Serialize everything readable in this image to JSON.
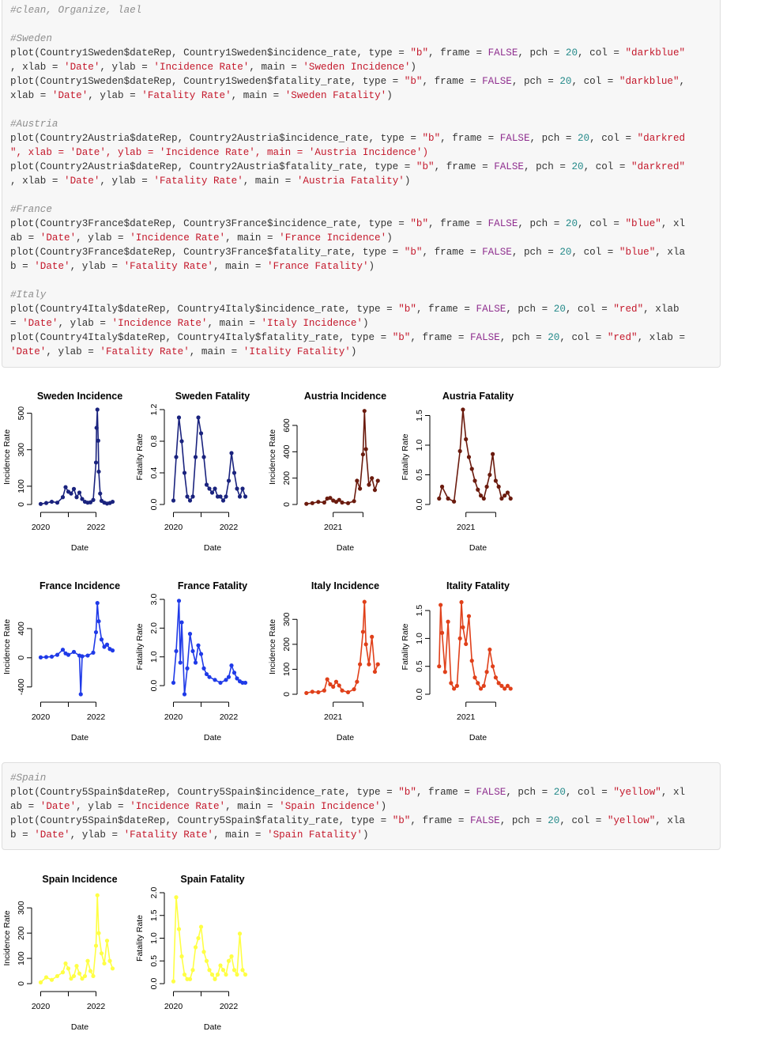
{
  "code_block_1": {
    "lines": [
      {
        "type": "comment",
        "text": "#clean, Organize, lael"
      },
      {
        "type": "blank",
        "text": ""
      },
      {
        "type": "comment",
        "text": "#Sweden"
      },
      {
        "type": "code",
        "text": "plot(Country1Sweden$dateRep, Country1Sweden$incidence_rate, type = \"b\", frame = FALSE, pch = 20, col = \"darkblue\""
      },
      {
        "type": "code",
        "text": ", xlab = 'Date', ylab = 'Incidence Rate', main = 'Sweden Incidence')"
      },
      {
        "type": "code",
        "text": "plot(Country1Sweden$dateRep, Country1Sweden$fatality_rate, type = \"b\", frame = FALSE, pch = 20, col = \"darkblue\","
      },
      {
        "type": "code",
        "text": "xlab = 'Date', ylab = 'Fatality Rate', main = 'Sweden Fatality')"
      },
      {
        "type": "blank",
        "text": ""
      },
      {
        "type": "comment",
        "text": "#Austria"
      },
      {
        "type": "code",
        "text": "plot(Country2Austria$dateRep, Country2Austria$incidence_rate, type = \"b\", frame = FALSE, pch = 20, col = \"darkred"
      },
      {
        "type": "code",
        "text": "\", xlab = 'Date', ylab = 'Incidence Rate', main = 'Austria Incidence')"
      },
      {
        "type": "code",
        "text": "plot(Country2Austria$dateRep, Country2Austria$fatality_rate, type = \"b\", frame = FALSE, pch = 20, col = \"darkred\""
      },
      {
        "type": "code",
        "text": ", xlab = 'Date', ylab = 'Fatality Rate', main = 'Austria Fatality')"
      },
      {
        "type": "blank",
        "text": ""
      },
      {
        "type": "comment",
        "text": "#France"
      },
      {
        "type": "code",
        "text": "plot(Country3France$dateRep, Country3France$incidence_rate, type = \"b\", frame = FALSE, pch = 20, col = \"blue\", xl"
      },
      {
        "type": "code",
        "text": "ab = 'Date', ylab = 'Incidence Rate', main = 'France Incidence')"
      },
      {
        "type": "code",
        "text": "plot(Country3France$dateRep, Country3France$fatality_rate, type = \"b\", frame = FALSE, pch = 20, col = \"blue\", xla"
      },
      {
        "type": "code",
        "text": "b = 'Date', ylab = 'Fatality Rate', main = 'France Fatality')"
      },
      {
        "type": "blank",
        "text": ""
      },
      {
        "type": "comment",
        "text": "#Italy"
      },
      {
        "type": "code",
        "text": "plot(Country4Italy$dateRep, Country4Italy$incidence_rate, type = \"b\", frame = FALSE, pch = 20, col = \"red\", xlab"
      },
      {
        "type": "code",
        "text": "= 'Date', ylab = 'Incidence Rate', main = 'Italy Incidence')"
      },
      {
        "type": "code",
        "text": "plot(Country4Italy$dateRep, Country4Italy$fatality_rate, type = \"b\", frame = FALSE, pch = 20, col = \"red\", xlab ="
      },
      {
        "type": "code",
        "text": "'Date', ylab = 'Fatality Rate', main = 'Itality Fatality')"
      }
    ]
  },
  "code_block_2": {
    "lines": [
      {
        "type": "comment",
        "text": "#Spain"
      },
      {
        "type": "code",
        "text": "plot(Country5Spain$dateRep, Country5Spain$incidence_rate, type = \"b\", frame = FALSE, pch = 20, col = \"yellow\", xl"
      },
      {
        "type": "code",
        "text": "ab = 'Date', ylab = 'Incidence Rate', main = 'Spain Incidence')"
      },
      {
        "type": "code",
        "text": "plot(Country5Spain$dateRep, Country5Spain$fatality_rate, type = \"b\", frame = FALSE, pch = 20, col = \"yellow\", xla"
      },
      {
        "type": "code",
        "text": "b = 'Date', ylab = 'Fatality Rate', main = 'Spain Fatality')"
      }
    ]
  },
  "chart_data": [
    {
      "id": "sweden-incidence",
      "type": "line",
      "title": "Sweden Incidence",
      "xlabel": "Date",
      "ylabel": "Incidence Rate",
      "color": "#1a237e",
      "xlim": [
        2019.9,
        2022.7
      ],
      "ylim": [
        0,
        520
      ],
      "xticks": [
        2020,
        2021,
        2022
      ],
      "xtick_labels": [
        "2020",
        "",
        "2022"
      ],
      "yticks": [
        0,
        100,
        300,
        500
      ],
      "ytick_labels": [
        "0",
        "100",
        "300",
        "500"
      ],
      "x": [
        2020.0,
        2020.2,
        2020.4,
        2020.6,
        2020.8,
        2020.9,
        2021.0,
        2021.1,
        2021.2,
        2021.3,
        2021.4,
        2021.5,
        2021.6,
        2021.7,
        2021.8,
        2021.9,
        2022.0,
        2022.02,
        2022.05,
        2022.08,
        2022.1,
        2022.15,
        2022.2,
        2022.3,
        2022.4,
        2022.5,
        2022.6
      ],
      "y": [
        3,
        8,
        15,
        10,
        40,
        95,
        70,
        60,
        85,
        40,
        65,
        30,
        15,
        10,
        12,
        25,
        230,
        420,
        520,
        350,
        180,
        60,
        20,
        10,
        5,
        8,
        15
      ]
    },
    {
      "id": "sweden-fatality",
      "type": "line",
      "title": "Sweden Fatality",
      "xlabel": "Date",
      "ylabel": "Fatality Rate",
      "color": "#1a237e",
      "xlim": [
        2019.9,
        2022.7
      ],
      "ylim": [
        0,
        1.2
      ],
      "xticks": [
        2020,
        2021,
        2022
      ],
      "xtick_labels": [
        "2020",
        "",
        "2022"
      ],
      "yticks": [
        0,
        0.4,
        0.8,
        1.2
      ],
      "ytick_labels": [
        "0.0",
        "0.4",
        "0.8",
        "1.2"
      ],
      "x": [
        2020.0,
        2020.1,
        2020.2,
        2020.3,
        2020.4,
        2020.5,
        2020.6,
        2020.7,
        2020.8,
        2020.9,
        2021.0,
        2021.1,
        2021.2,
        2021.3,
        2021.4,
        2021.5,
        2021.6,
        2021.7,
        2021.8,
        2021.9,
        2022.0,
        2022.1,
        2022.2,
        2022.3,
        2022.4,
        2022.5,
        2022.6
      ],
      "y": [
        0.05,
        0.6,
        1.1,
        0.8,
        0.4,
        0.1,
        0.05,
        0.1,
        0.6,
        1.1,
        0.9,
        0.6,
        0.25,
        0.2,
        0.15,
        0.2,
        0.1,
        0.1,
        0.05,
        0.1,
        0.3,
        0.65,
        0.4,
        0.2,
        0.1,
        0.2,
        0.1
      ]
    },
    {
      "id": "austria-incidence",
      "type": "line",
      "title": "Austria Incidence",
      "xlabel": "Date",
      "ylabel": "Incidence Rate",
      "color": "#6b1b0e",
      "xlim": [
        2020.0,
        2022.6
      ],
      "ylim": [
        0,
        720
      ],
      "xticks": [
        2021,
        2022
      ],
      "xtick_labels": [
        "2021",
        ""
      ],
      "yticks": [
        0,
        200,
        400,
        600
      ],
      "ytick_labels": [
        "0",
        "200",
        "400",
        "600"
      ],
      "x": [
        2020.1,
        2020.3,
        2020.5,
        2020.7,
        2020.8,
        2020.9,
        2021.0,
        2021.1,
        2021.2,
        2021.3,
        2021.5,
        2021.7,
        2021.8,
        2021.9,
        2022.0,
        2022.05,
        2022.1,
        2022.2,
        2022.3,
        2022.4,
        2022.5
      ],
      "y": [
        5,
        10,
        20,
        15,
        45,
        50,
        30,
        20,
        35,
        15,
        10,
        25,
        180,
        120,
        380,
        710,
        420,
        150,
        200,
        110,
        180
      ]
    },
    {
      "id": "austria-fatality",
      "type": "line",
      "title": "Austria Fatality",
      "xlabel": "Date",
      "ylabel": "Fatality Rate",
      "color": "#6b1b0e",
      "xlim": [
        2020.0,
        2022.6
      ],
      "ylim": [
        0,
        1.6
      ],
      "xticks": [
        2021,
        2022
      ],
      "xtick_labels": [
        "2021",
        ""
      ],
      "yticks": [
        0,
        0.5,
        1.0,
        1.5
      ],
      "ytick_labels": [
        "0.0",
        "0.5",
        "1.0",
        "1.5"
      ],
      "x": [
        2020.1,
        2020.2,
        2020.4,
        2020.6,
        2020.8,
        2020.9,
        2021.0,
        2021.1,
        2021.2,
        2021.3,
        2021.4,
        2021.5,
        2021.6,
        2021.7,
        2021.8,
        2021.9,
        2022.0,
        2022.1,
        2022.2,
        2022.3,
        2022.4,
        2022.5
      ],
      "y": [
        0.1,
        0.3,
        0.1,
        0.05,
        0.9,
        1.6,
        1.1,
        0.8,
        0.6,
        0.4,
        0.25,
        0.15,
        0.1,
        0.3,
        0.5,
        0.85,
        0.4,
        0.3,
        0.1,
        0.15,
        0.2,
        0.1
      ]
    },
    {
      "id": "france-incidence",
      "type": "line",
      "title": "France Incidence",
      "xlabel": "Date",
      "ylabel": "Incidence Rate",
      "color": "#1f3ae8",
      "xlim": [
        2019.9,
        2022.7
      ],
      "ylim": [
        -500,
        800
      ],
      "xticks": [
        2020,
        2021,
        2022
      ],
      "xtick_labels": [
        "2020",
        "",
        "2022"
      ],
      "yticks": [
        -400,
        0,
        400
      ],
      "ytick_labels": [
        "-400",
        "0",
        "400"
      ],
      "x": [
        2020.0,
        2020.2,
        2020.4,
        2020.6,
        2020.8,
        2020.9,
        2021.0,
        2021.2,
        2021.4,
        2021.45,
        2021.5,
        2021.7,
        2021.9,
        2022.0,
        2022.05,
        2022.1,
        2022.2,
        2022.3,
        2022.4,
        2022.5,
        2022.6
      ],
      "y": [
        5,
        10,
        15,
        40,
        110,
        60,
        40,
        80,
        30,
        -500,
        20,
        30,
        70,
        350,
        750,
        500,
        250,
        150,
        180,
        120,
        100
      ]
    },
    {
      "id": "france-fatality",
      "type": "line",
      "title": "France Fatality",
      "xlabel": "Date",
      "ylabel": "Fatality Rate",
      "color": "#1f3ae8",
      "xlim": [
        2019.9,
        2022.7
      ],
      "ylim": [
        -0.3,
        3.0
      ],
      "xticks": [
        2020,
        2021,
        2022
      ],
      "xtick_labels": [
        "2020",
        "",
        "2022"
      ],
      "yticks": [
        0,
        1.0,
        2.0,
        3.0
      ],
      "ytick_labels": [
        "0.0",
        "1.0",
        "2.0",
        "3.0"
      ],
      "x": [
        2020.0,
        2020.1,
        2020.2,
        2020.25,
        2020.3,
        2020.4,
        2020.5,
        2020.6,
        2020.7,
        2020.8,
        2020.9,
        2021.0,
        2021.1,
        2021.2,
        2021.3,
        2021.5,
        2021.7,
        2021.9,
        2022.0,
        2022.1,
        2022.2,
        2022.3,
        2022.4,
        2022.5,
        2022.6
      ],
      "y": [
        0.1,
        1.2,
        2.95,
        0.8,
        2.2,
        -0.3,
        0.6,
        1.8,
        1.2,
        0.8,
        1.4,
        1.1,
        0.6,
        0.4,
        0.3,
        0.2,
        0.1,
        0.2,
        0.3,
        0.7,
        0.45,
        0.25,
        0.15,
        0.1,
        0.1
      ]
    },
    {
      "id": "italy-incidence",
      "type": "line",
      "title": "Italy Incidence",
      "xlabel": "Date",
      "ylabel": "Incidence Rate",
      "color": "#e0401a",
      "xlim": [
        2020.0,
        2022.6
      ],
      "ylim": [
        0,
        380
      ],
      "xticks": [
        2021,
        2022
      ],
      "xtick_labels": [
        "2021",
        ""
      ],
      "yticks": [
        0,
        100,
        200,
        300
      ],
      "ytick_labels": [
        "0",
        "100",
        "200",
        "300"
      ],
      "x": [
        2020.1,
        2020.3,
        2020.5,
        2020.7,
        2020.8,
        2020.9,
        2021.0,
        2021.1,
        2021.2,
        2021.3,
        2021.5,
        2021.7,
        2021.8,
        2021.9,
        2022.0,
        2022.05,
        2022.1,
        2022.2,
        2022.3,
        2022.4,
        2022.5
      ],
      "y": [
        5,
        10,
        8,
        15,
        60,
        40,
        30,
        50,
        35,
        15,
        8,
        20,
        50,
        120,
        250,
        370,
        200,
        120,
        230,
        90,
        120
      ]
    },
    {
      "id": "italy-fatality",
      "type": "line",
      "title": "Itality Fatality",
      "xlabel": "Date",
      "ylabel": "Fatality Rate",
      "color": "#e0401a",
      "xlim": [
        2020.0,
        2022.6
      ],
      "ylim": [
        0,
        1.7
      ],
      "xticks": [
        2021,
        2022
      ],
      "xtick_labels": [
        "2021",
        ""
      ],
      "yticks": [
        0,
        0.5,
        1.0,
        1.5
      ],
      "ytick_labels": [
        "0.0",
        "0.5",
        "1.0",
        "1.5"
      ],
      "x": [
        2020.1,
        2020.15,
        2020.2,
        2020.3,
        2020.4,
        2020.5,
        2020.6,
        2020.7,
        2020.8,
        2020.85,
        2020.9,
        2021.0,
        2021.1,
        2021.2,
        2021.3,
        2021.4,
        2021.5,
        2021.6,
        2021.7,
        2021.8,
        2021.9,
        2022.0,
        2022.1,
        2022.2,
        2022.3,
        2022.4,
        2022.5
      ],
      "y": [
        0.5,
        1.6,
        1.1,
        0.4,
        1.3,
        0.2,
        0.1,
        0.15,
        1.0,
        1.65,
        1.2,
        0.9,
        1.4,
        0.6,
        0.3,
        0.2,
        0.1,
        0.15,
        0.4,
        0.8,
        0.5,
        0.3,
        0.2,
        0.15,
        0.1,
        0.15,
        0.1
      ]
    },
    {
      "id": "spain-incidence",
      "type": "line",
      "title": "Spain Incidence",
      "xlabel": "Date",
      "ylabel": "Incidence Rate",
      "color": "#ffff44",
      "xlim": [
        2019.9,
        2022.7
      ],
      "ylim": [
        0,
        360
      ],
      "xticks": [
        2020,
        2021,
        2022
      ],
      "xtick_labels": [
        "2020",
        "",
        "2022"
      ],
      "yticks": [
        0,
        100,
        200,
        300
      ],
      "ytick_labels": [
        "0",
        "100",
        "200",
        "300"
      ],
      "x": [
        2020.0,
        2020.2,
        2020.4,
        2020.6,
        2020.8,
        2020.9,
        2021.0,
        2021.1,
        2021.2,
        2021.3,
        2021.4,
        2021.5,
        2021.6,
        2021.7,
        2021.8,
        2021.9,
        2022.0,
        2022.05,
        2022.1,
        2022.2,
        2022.3,
        2022.4,
        2022.5,
        2022.6
      ],
      "y": [
        5,
        25,
        15,
        30,
        45,
        80,
        60,
        20,
        30,
        70,
        40,
        20,
        30,
        90,
        50,
        30,
        150,
        350,
        200,
        120,
        80,
        170,
        90,
        60
      ]
    },
    {
      "id": "spain-fatality",
      "type": "line",
      "title": "Spain Fatality",
      "xlabel": "Date",
      "ylabel": "Fatality Rate",
      "color": "#ffff44",
      "xlim": [
        2019.9,
        2022.7
      ],
      "ylim": [
        0,
        2.0
      ],
      "xticks": [
        2020,
        2021,
        2022
      ],
      "xtick_labels": [
        "2020",
        "",
        "2022"
      ],
      "yticks": [
        0,
        0.5,
        1.0,
        1.5,
        2.0
      ],
      "ytick_labels": [
        "0.0",
        "0.5",
        "1.0",
        "1.5",
        "2.0"
      ],
      "x": [
        2020.0,
        2020.1,
        2020.2,
        2020.3,
        2020.4,
        2020.5,
        2020.6,
        2020.7,
        2020.8,
        2020.9,
        2021.0,
        2021.1,
        2021.2,
        2021.3,
        2021.4,
        2021.5,
        2021.6,
        2021.7,
        2021.8,
        2021.9,
        2022.0,
        2022.1,
        2022.2,
        2022.3,
        2022.4,
        2022.5,
        2022.6
      ],
      "y": [
        0.05,
        1.9,
        1.2,
        0.6,
        0.2,
        0.1,
        0.1,
        0.3,
        0.8,
        1.0,
        1.25,
        0.7,
        0.5,
        0.3,
        0.2,
        0.1,
        0.2,
        0.4,
        0.3,
        0.2,
        0.5,
        0.6,
        0.3,
        0.2,
        1.1,
        0.3,
        0.2
      ]
    }
  ]
}
